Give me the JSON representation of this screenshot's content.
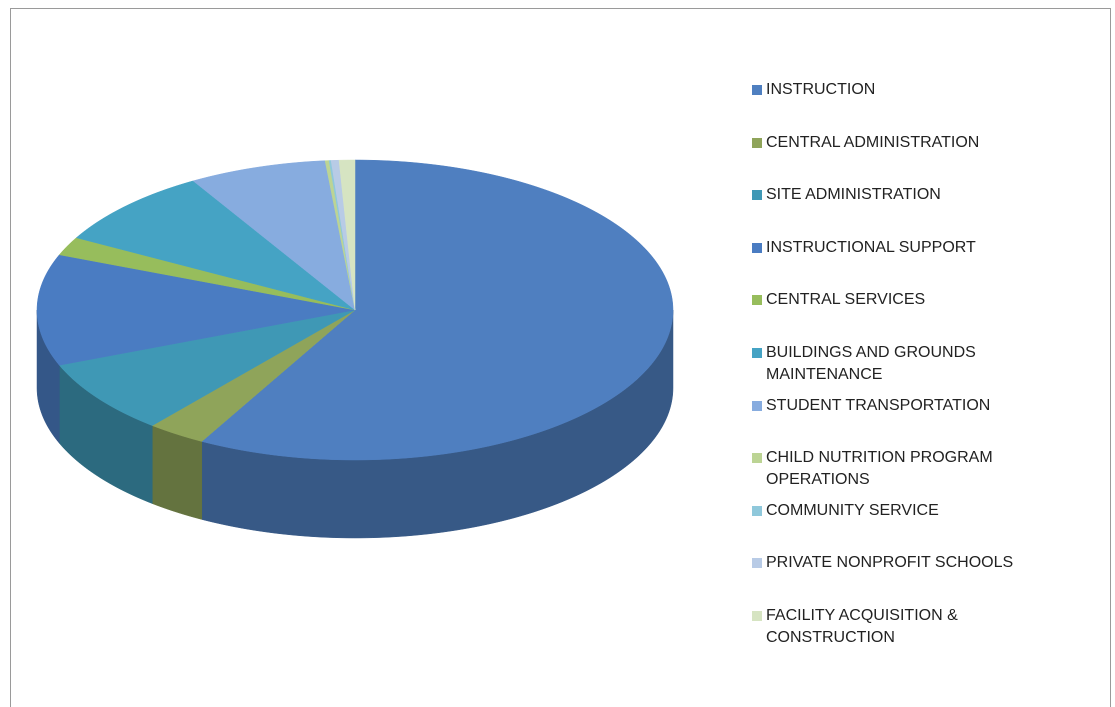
{
  "chart_data": {
    "type": "pie",
    "categories": [
      "INSTRUCTION",
      "CENTRAL ADMINISTRATION",
      "SITE ADMINISTRATION",
      "INSTRUCTIONAL SUPPORT",
      "CENTRAL SERVICES",
      "BUILDINGS AND GROUNDS MAINTENANCE",
      "STUDENT TRANSPORTATION",
      "CHILD NUTRITION PROGRAM OPERATIONS",
      "COMMUNITY SERVICE",
      "PRIVATE NONPROFIT SCHOOLS",
      "FACILITY ACQUISITION & CONSTRUCTION"
    ],
    "values": [
      58,
      3,
      8,
      12,
      2,
      8.5,
      7,
      0.2,
      0.1,
      0.4,
      0.8
    ],
    "colors": [
      "#4f7fc0",
      "#8fa45a",
      "#3f98b5",
      "#4a7cc2",
      "#97bd5c",
      "#45a3c4",
      "#87acdf",
      "#bcd494",
      "#8fc8db",
      "#b8cbe6",
      "#d6e4c2"
    ],
    "legend": "right"
  }
}
